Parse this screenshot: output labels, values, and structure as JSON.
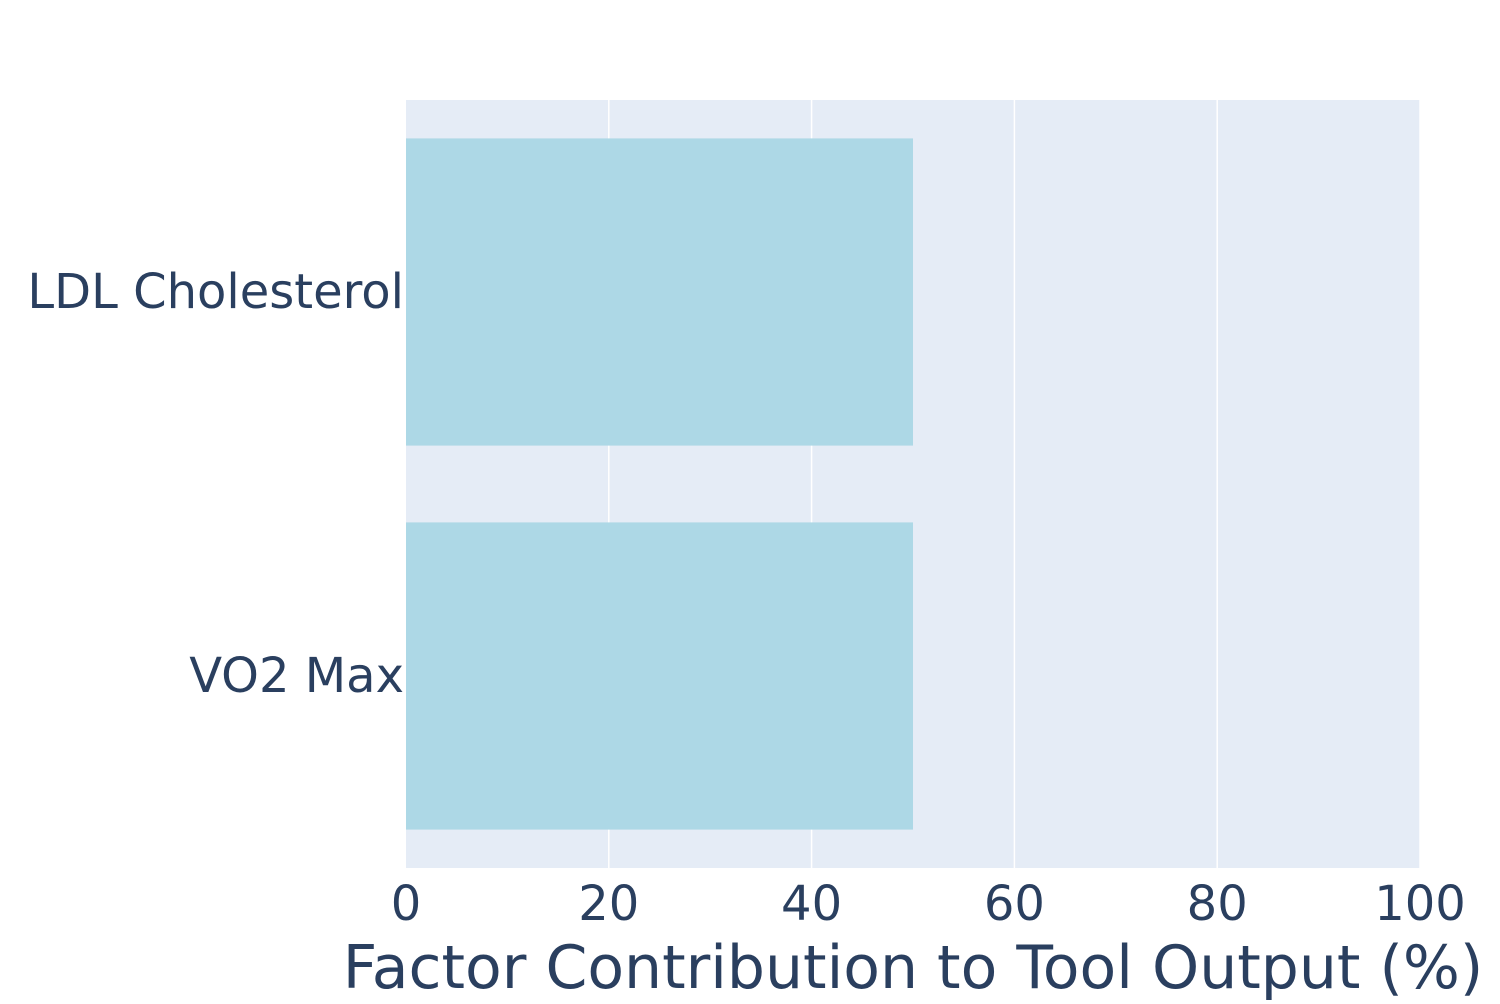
{
  "chart_data": {
    "type": "bar",
    "orientation": "horizontal",
    "categories": [
      "LDL Cholesterol",
      "VO2 Max"
    ],
    "values": [
      50,
      50
    ],
    "title": "",
    "xlabel": "Factor Contribution to Tool Output (%)",
    "ylabel": "",
    "xlim": [
      0,
      100
    ],
    "xticks": [
      0,
      20,
      40,
      60,
      80,
      100
    ],
    "grid": true,
    "legend": "none",
    "colors": {
      "bar": "#add8e6",
      "plot_background": "#e5ecf6",
      "gridline": "#ffffff",
      "text": "#2a3f5f"
    }
  }
}
